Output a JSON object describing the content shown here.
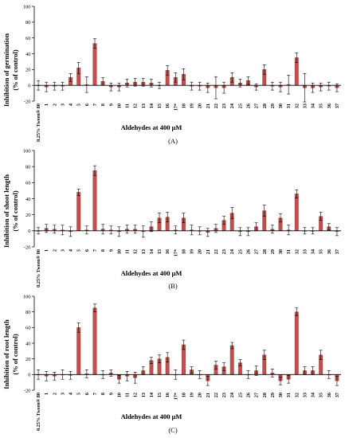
{
  "chart_data": [
    {
      "type": "bar",
      "panel_label": "(A)",
      "ylabel_line1": "Inhibition of germination",
      "ylabel_line2": "(% of control)",
      "xlabel": "Aldehydes at 400 μM",
      "ylim": [
        -20,
        100
      ],
      "yticks": [
        -20,
        0,
        20,
        40,
        60,
        80,
        100
      ],
      "categories": [
        "0.25% Tween® 80",
        "1",
        "2",
        "3",
        "4",
        "5",
        "6",
        "7",
        "8",
        "9",
        "10",
        "11",
        "12",
        "13",
        "14",
        "15",
        "16",
        "17*",
        "18",
        "19",
        "20",
        "21",
        "22",
        "23",
        "24",
        "25",
        "26",
        "27",
        "28",
        "29",
        "30",
        "31",
        "32",
        "33",
        "34",
        "35",
        "36",
        "37"
      ],
      "values": [
        0,
        -2,
        -1,
        -1,
        10,
        22,
        1,
        53,
        5,
        -2,
        -2,
        3,
        4,
        4,
        3,
        0,
        19,
        10,
        14,
        -1,
        -1,
        -3,
        -3,
        -3,
        10,
        3,
        6,
        -2,
        20,
        -1,
        -2,
        1,
        35,
        -3,
        -3,
        -2,
        -1,
        -3
      ],
      "errors": [
        6,
        6,
        5,
        5,
        5,
        7,
        10,
        6,
        5,
        5,
        5,
        5,
        5,
        5,
        5,
        4,
        6,
        6,
        7,
        5,
        5,
        6,
        14,
        7,
        6,
        5,
        5,
        4,
        6,
        5,
        6,
        12,
        6,
        18,
        6,
        5,
        5,
        5
      ]
    },
    {
      "type": "bar",
      "panel_label": "(B)",
      "ylabel_line1": "Inhibition of shoot length",
      "ylabel_line2": "(% of control)",
      "xlabel": "Aldehydes at 400  μM",
      "ylim": [
        -20,
        100
      ],
      "yticks": [
        -20,
        0,
        20,
        40,
        60,
        80,
        100
      ],
      "categories": [
        "0.25% Tween® 80",
        "1",
        "2",
        "3",
        "4",
        "5",
        "6",
        "7",
        "8",
        "9",
        "10",
        "11",
        "12",
        "13",
        "14",
        "15",
        "16",
        "17*",
        "18",
        "19",
        "20",
        "21",
        "22",
        "23",
        "24",
        "25",
        "26",
        "27",
        "28",
        "29",
        "30",
        "31",
        "32",
        "33",
        "34",
        "35",
        "36",
        "37"
      ],
      "values": [
        0,
        3,
        2,
        1,
        -1,
        48,
        1,
        75,
        2,
        1,
        -1,
        2,
        2,
        -1,
        5,
        16,
        17,
        1,
        16,
        1,
        0,
        -2,
        3,
        13,
        22,
        -1,
        -1,
        5,
        25,
        2,
        16,
        1,
        46,
        0,
        0,
        18,
        5,
        -1
      ],
      "errors": [
        4,
        5,
        5,
        6,
        6,
        4,
        5,
        6,
        6,
        5,
        6,
        5,
        5,
        7,
        6,
        6,
        6,
        5,
        6,
        6,
        5,
        5,
        5,
        5,
        7,
        5,
        5,
        5,
        7,
        5,
        5,
        6,
        5,
        4,
        4,
        5,
        4,
        5
      ]
    },
    {
      "type": "bar",
      "panel_label": "(C)",
      "ylabel_line1": "Inhibition of root length",
      "ylabel_line2": "(% of control)",
      "xlabel": "Aldehydes at 400 μM",
      "ylim": [
        -20,
        100
      ],
      "yticks": [
        -20,
        0,
        20,
        40,
        60,
        80,
        100
      ],
      "categories": [
        "0.25% Tween® 80",
        "1",
        "2",
        "3",
        "4",
        "5",
        "6",
        "7",
        "8",
        "9",
        "10",
        "11",
        "12",
        "13",
        "14",
        "15",
        "16",
        "17*",
        "18",
        "19",
        "20",
        "21",
        "22",
        "23",
        "24",
        "25",
        "26",
        "27",
        "28",
        "29",
        "30",
        "31",
        "32",
        "33",
        "34",
        "35",
        "36",
        "37"
      ],
      "values": [
        0,
        -2,
        -2,
        0,
        -1,
        60,
        1,
        85,
        0,
        2,
        -6,
        -2,
        -4,
        5,
        18,
        20,
        22,
        0,
        38,
        6,
        0,
        -8,
        12,
        10,
        37,
        15,
        0,
        5,
        25,
        2,
        -8,
        -6,
        80,
        5,
        5,
        25,
        0,
        -8
      ],
      "errors": [
        6,
        6,
        5,
        6,
        5,
        6,
        5,
        5,
        5,
        4,
        5,
        6,
        7,
        5,
        4,
        5,
        6,
        6,
        6,
        4,
        5,
        6,
        5,
        5,
        4,
        4,
        5,
        6,
        6,
        5,
        5,
        5,
        5,
        5,
        5,
        6,
        5,
        6
      ]
    }
  ],
  "style": {
    "bar_color": "#c0504d",
    "bar_edge_color": "#8b2e2b",
    "axis_color": "#000000"
  }
}
